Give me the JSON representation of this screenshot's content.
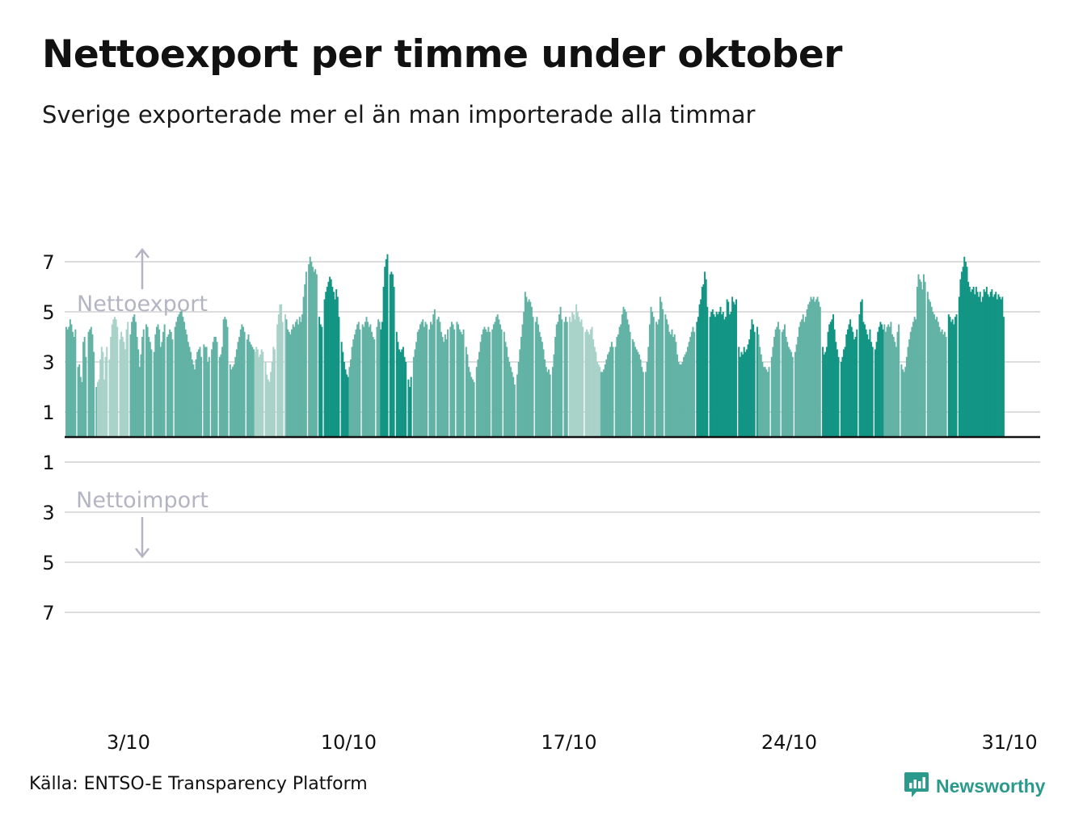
{
  "title": "Nettoexport per timme under oktober",
  "subtitle": "Sverige exporterade mer el än man importerade alla timmar",
  "source": "Källa: ENTSO-E Transparency Platform",
  "brand": {
    "name": "Newsworthy",
    "logo_icon": "bar-chart-icon",
    "color": "#2b9a8d"
  },
  "colors": {
    "light": "#a9d2c9",
    "medium": "#62b3a5",
    "dark": "#139584",
    "zero_line": "#111111",
    "grid": "#dddddd",
    "annotation": "#b4b4c3"
  },
  "chart_data": {
    "type": "bar",
    "title": "Nettoexport per timme under oktober",
    "xlabel": "",
    "ylabel": "",
    "ylim": [
      -8,
      8
    ],
    "grid": true,
    "y_ticks": [
      {
        "value": 7,
        "label": "7"
      },
      {
        "value": 5,
        "label": "5"
      },
      {
        "value": 3,
        "label": "3"
      },
      {
        "value": 1,
        "label": "1"
      },
      {
        "value": -1,
        "label": "1"
      },
      {
        "value": -3,
        "label": "3"
      },
      {
        "value": -5,
        "label": "5"
      },
      {
        "value": -7,
        "label": "7"
      }
    ],
    "x_ticks": [
      {
        "day": 3,
        "label": "3/10"
      },
      {
        "day": 10,
        "label": "10/10"
      },
      {
        "day": 17,
        "label": "17/10"
      },
      {
        "day": 24,
        "label": "24/10"
      },
      {
        "day": 31,
        "label": "31/10"
      }
    ],
    "annotations": [
      {
        "text": "Nettoexport",
        "direction": "up"
      },
      {
        "text": "Nettoimport",
        "direction": "down"
      }
    ],
    "series": [
      {
        "values_by_day": {
          "1": [
            4.4,
            4.3,
            4.4,
            4.7,
            4.5,
            4.2,
            4.0,
            4.3,
            0,
            2.8,
            2.9,
            2.4,
            2.2,
            3.8,
            4.0,
            3.2,
            0,
            4.2,
            4.3,
            4.4,
            4.1,
            3.4,
            0,
            2.0
          ],
          "2": [
            2.2,
            2.3,
            3.1,
            3.6,
            3.4,
            2.3,
            3.2,
            3.6,
            0,
            3.1,
            4.0,
            4.5,
            4.7,
            4.8,
            4.7,
            4.4,
            0,
            3.9,
            4.2,
            4.0,
            3.8,
            3.5,
            4.3,
            4.6
          ],
          "3": [
            0,
            4.1,
            4.6,
            4.8,
            4.9,
            4.6,
            4.0,
            3.5,
            2.8,
            3.3,
            4.0,
            4.3,
            0,
            4.5,
            4.4,
            4.0,
            3.8,
            3.5,
            0,
            3.4,
            4.1,
            4.4,
            4.5,
            4.3
          ],
          "4": [
            3.6,
            3.8,
            4.2,
            4.5,
            0,
            4.0,
            4.1,
            4.3,
            4.2,
            3.9,
            0,
            4.4,
            4.6,
            4.8,
            4.9,
            5.0,
            5.1,
            4.8,
            4.6,
            4.3,
            4.1,
            3.8,
            3.6,
            3.4
          ],
          "5": [
            3.1,
            2.9,
            2.7,
            3.1,
            3.4,
            3.5,
            3.6,
            3.2,
            0,
            3.7,
            3.6,
            3.6,
            3.0,
            3.2,
            0,
            3.5,
            3.8,
            4.0,
            4.0,
            3.8,
            0,
            3.2,
            3.3,
            3.6
          ],
          "6": [
            4.7,
            4.8,
            4.7,
            4.4,
            0,
            2.9,
            2.7,
            2.8,
            2.9,
            3.2,
            3.5,
            3.8,
            4.0,
            4.3,
            4.5,
            4.4,
            4.2,
            0,
            3.9,
            4.1,
            3.8,
            3.7,
            3.6,
            3.5
          ],
          "7": [
            3.4,
            3.6,
            3.5,
            3.2,
            3.3,
            3.5,
            3.4,
            0,
            3.0,
            2.5,
            2.3,
            2.2,
            2.6,
            3.0,
            3.6,
            3.5,
            0,
            4.5,
            4.9,
            5.3,
            5.3,
            4.6,
            0,
            4.9
          ],
          "8": [
            4.7,
            4.3,
            4.2,
            4.1,
            4.3,
            4.5,
            4.4,
            4.6,
            4.7,
            4.5,
            4.8,
            4.6,
            4.9,
            5.6,
            6.1,
            6.6,
            0,
            6.9,
            7.2,
            7.0,
            6.8,
            6.6,
            6.7,
            6.5
          ],
          "9": [
            0,
            4.8,
            4.5,
            4.4,
            0,
            5.5,
            5.8,
            6.0,
            6.2,
            6.4,
            6.3,
            6.0,
            5.8,
            5.5,
            5.9,
            5.6,
            4.8,
            0,
            3.8,
            3.4,
            3.0,
            2.7,
            2.5,
            2.4
          ],
          "10": [
            2.8,
            3.1,
            3.6,
            3.9,
            4.1,
            4.3,
            4.5,
            4.6,
            4.3,
            0,
            4.5,
            4.4,
            4.6,
            4.8,
            4.6,
            4.4,
            4.5,
            4.2,
            4.0,
            3.9,
            0,
            4.4,
            4.7,
            4.6
          ],
          "11": [
            4.3,
            4.6,
            6.0,
            6.8,
            7.1,
            7.3,
            0,
            6.5,
            6.6,
            6.5,
            6.0,
            0,
            4.2,
            3.8,
            3.5,
            3.4,
            3.5,
            3.6,
            3.2,
            3.0,
            0,
            2.3,
            2.0,
            2.4
          ],
          "12": [
            0,
            3.2,
            3.5,
            3.8,
            4.2,
            4.3,
            4.5,
            4.6,
            4.7,
            4.4,
            4.6,
            4.5,
            0,
            4.3,
            4.6,
            4.5,
            4.9,
            5.1,
            0,
            4.7,
            4.8,
            4.6,
            4.2,
            4.0
          ],
          "13": [
            3.8,
            4.1,
            3.9,
            4.3,
            0,
            4.4,
            4.6,
            4.5,
            4.3,
            0,
            4.6,
            4.5,
            4.3,
            4.2,
            4.1,
            4.3,
            0,
            3.6,
            3.3,
            2.8,
            2.6,
            2.4,
            2.3,
            2.2
          ],
          "14": [
            0,
            2.8,
            3.1,
            3.4,
            3.8,
            4.1,
            4.3,
            4.4,
            4.3,
            4.2,
            4.4,
            4.2,
            0,
            4.3,
            4.5,
            4.6,
            4.8,
            4.9,
            4.7,
            4.5,
            4.3,
            0,
            4.2,
            3.8
          ],
          "15": [
            3.6,
            3.2,
            3.0,
            2.8,
            2.6,
            2.4,
            2.1,
            0,
            2.5,
            3.0,
            3.5,
            4.0,
            4.5,
            5.0,
            5.8,
            5.6,
            5.4,
            5.5,
            5.4,
            5.2,
            4.8,
            0,
            4.6,
            4.8
          ],
          "16": [
            4.5,
            4.2,
            4.0,
            3.8,
            3.5,
            3.1,
            2.8,
            2.6,
            2.7,
            2.5,
            0,
            2.8,
            3.3,
            4.0,
            4.5,
            4.6,
            4.9,
            5.2,
            4.7,
            0,
            4.6,
            4.8,
            4.6,
            0
          ],
          "17": [
            4.8,
            4.6,
            5.0,
            4.9,
            4.7,
            5.3,
            5.0,
            4.8,
            4.6,
            4.7,
            4.4,
            0,
            4.2,
            4.3,
            4.2,
            4.1,
            4.3,
            4.4,
            3.9,
            3.6,
            3.4,
            3.0,
            2.9,
            2.8
          ],
          "18": [
            2.6,
            2.6,
            2.7,
            2.9,
            3.1,
            3.3,
            3.4,
            3.6,
            3.8,
            3.6,
            0,
            3.6,
            4.0,
            4.1,
            4.4,
            4.5,
            4.9,
            5.2,
            5.1,
            5.0,
            4.7,
            4.5,
            4.2,
            0
          ],
          "19": [
            3.9,
            3.8,
            3.6,
            3.5,
            3.4,
            3.3,
            3.1,
            2.8,
            2.6,
            0,
            2.6,
            3.0,
            3.6,
            4.5,
            5.2,
            5.0,
            4.8,
            0,
            4.6,
            4.5,
            4.7,
            5.6,
            5.4,
            5.1
          ],
          "20": [
            0,
            4.9,
            4.7,
            4.5,
            4.2,
            4.1,
            4.3,
            4.0,
            4.1,
            3.8,
            3.3,
            3.0,
            2.9,
            2.9,
            3.0,
            3.2,
            3.3,
            3.4,
            3.6,
            3.8,
            4.0,
            4.2,
            4.4,
            4.2
          ],
          "21": [
            0,
            4.6,
            4.8,
            5.3,
            5.5,
            6.0,
            6.1,
            6.6,
            6.3,
            5.2,
            0,
            4.8,
            5.0,
            5.1,
            4.9,
            4.8,
            5.0,
            4.9,
            5.0,
            5.2,
            4.9,
            5.0,
            4.7,
            4.8
          ],
          "22": [
            5.5,
            5.4,
            4.9,
            5.0,
            5.6,
            5.4,
            5.3,
            5.5,
            0,
            3.6,
            3.2,
            3.4,
            3.3,
            3.6,
            3.4,
            3.5,
            3.7,
            3.9,
            4.3,
            4.7,
            4.5,
            4.2,
            0,
            4.4
          ],
          "23": [
            4.1,
            3.6,
            3.3,
            3.0,
            2.8,
            2.8,
            2.7,
            2.6,
            2.8,
            0,
            3.2,
            3.6,
            4.0,
            4.3,
            4.4,
            4.6,
            4.3,
            0,
            4.2,
            4.3,
            4.5,
            4.0,
            3.8,
            3.6
          ],
          "24": [
            3.5,
            3.4,
            3.2,
            0,
            3.4,
            3.7,
            4.0,
            4.4,
            4.6,
            4.7,
            4.9,
            4.6,
            4.8,
            5.1,
            5.3,
            5.4,
            5.6,
            5.5,
            5.6,
            5.4,
            5.5,
            5.6,
            5.4,
            5.2
          ],
          "25": [
            0,
            3.6,
            3.3,
            3.4,
            3.6,
            4.2,
            4.5,
            4.6,
            4.7,
            4.9,
            4.3,
            3.8,
            3.5,
            3.2,
            0,
            3.0,
            3.2,
            3.5,
            3.6,
            4.1,
            4.3,
            4.5,
            4.7,
            4.4
          ],
          "26": [
            4.2,
            3.9,
            4.0,
            4.3,
            0,
            4.9,
            5.4,
            5.5,
            4.6,
            4.5,
            4.3,
            4.1,
            3.9,
            4.3,
            3.8,
            3.6,
            0,
            3.5,
            3.8,
            4.2,
            4.4,
            4.6,
            4.5,
            4.3
          ],
          "27": [
            4.5,
            4.2,
            4.4,
            4.5,
            4.4,
            4.6,
            4.1,
            4.0,
            3.8,
            3.6,
            4.2,
            4.5,
            0,
            2.9,
            2.7,
            2.6,
            2.8,
            3.2,
            3.6,
            3.9,
            4.2,
            4.4,
            4.6,
            4.8
          ],
          "28": [
            4.7,
            6.0,
            6.5,
            6.3,
            6.2,
            5.9,
            6.5,
            6.2,
            0,
            5.8,
            5.5,
            5.4,
            5.2,
            5.0,
            4.9,
            4.7,
            4.8,
            4.6,
            4.4,
            4.2,
            4.3,
            4.1,
            4.2,
            4.0
          ],
          "29": [
            0,
            4.9,
            4.8,
            4.6,
            4.7,
            4.5,
            4.8,
            4.9,
            0,
            5.6,
            6.3,
            6.6,
            6.8,
            7.2,
            7.0,
            6.8,
            6.2,
            6.0,
            5.8,
            5.9,
            6.0,
            5.7,
            6.0,
            5.8
          ],
          "30": [
            5.6,
            5.8,
            5.4,
            5.6,
            5.9,
            5.8,
            6.0,
            5.7,
            5.6,
            5.8,
            5.9,
            5.6,
            5.7,
            5.8,
            5.5,
            5.7,
            5.6,
            5.5,
            5.6,
            4.8,
            0,
            0,
            0,
            0
          ]
        },
        "color_levels_by_day": {
          "1": "medium",
          "2": "light",
          "3": "medium",
          "4": "medium",
          "5": "medium",
          "6": "medium",
          "7": "light",
          "8": "medium",
          "9": "dark",
          "10": "medium",
          "11": "dark",
          "12": "medium",
          "13": "medium",
          "14": "medium",
          "15": "medium",
          "16": "medium",
          "17": "light",
          "18": "medium",
          "19": "medium",
          "20": "medium",
          "21": "dark",
          "22": "dark",
          "23": "medium",
          "24": "medium",
          "25": "dark",
          "26": "dark",
          "27": "medium",
          "28": "medium",
          "29": "dark",
          "30": "dark"
        }
      }
    ]
  }
}
